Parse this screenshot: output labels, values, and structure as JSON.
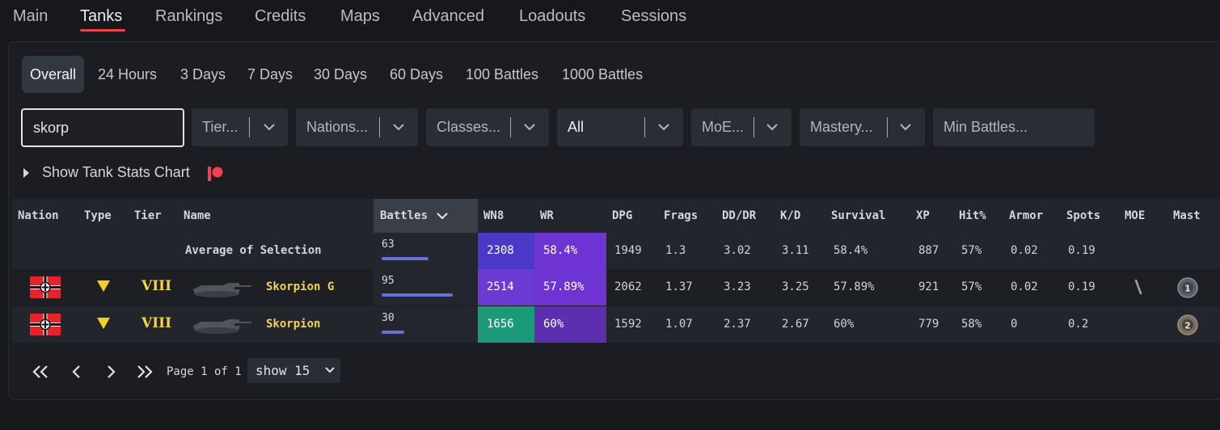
{
  "nav": {
    "tabs": [
      {
        "label": "Main"
      },
      {
        "label": "Tanks",
        "active": true
      },
      {
        "label": "Rankings"
      },
      {
        "label": "Credits"
      },
      {
        "label": "Maps"
      },
      {
        "label": "Advanced"
      },
      {
        "label": "Loadouts"
      },
      {
        "label": "Sessions"
      }
    ],
    "accent_color": "#e8424f"
  },
  "periods": [
    {
      "label": "Overall",
      "active": true
    },
    {
      "label": "24 Hours"
    },
    {
      "label": "3 Days"
    },
    {
      "label": "7 Days"
    },
    {
      "label": "30 Days"
    },
    {
      "label": "60 Days"
    },
    {
      "label": "100 Battles"
    },
    {
      "label": "1000 Battles"
    }
  ],
  "filters": {
    "search_value": "skorp",
    "tier": "Tier...",
    "nations": "Nations...",
    "classes": "Classes...",
    "premium": "All",
    "moe": "MoE...",
    "mastery": "Mastery...",
    "min_battles_placeholder": "Min Battles..."
  },
  "chart_toggle": {
    "label": "Show Tank Stats Chart",
    "icon": "patreon-icon"
  },
  "table": {
    "headers": {
      "nation": "Nation",
      "type": "Type",
      "tier": "Tier",
      "name": "Name",
      "battles": "Battles",
      "wn8": "WN8",
      "wr": "WR",
      "dpg": "DPG",
      "frags": "Frags",
      "dddr": "DD/DR",
      "kd": "K/D",
      "survival": "Survival",
      "xp": "XP",
      "hit": "Hit%",
      "armor": "Armor",
      "spots": "Spots",
      "moe": "MOE",
      "mastery": "Mast"
    },
    "average": {
      "label": "Average of Selection",
      "battles": "63",
      "wn8": "2308",
      "wr": "58.4%",
      "dpg": "1949",
      "frags": "1.3",
      "dddr": "3.02",
      "kd": "3.11",
      "survival": "58.4%",
      "xp": "887",
      "hit": "57%",
      "armor": "0.02",
      "spots": "0.19",
      "wn8_color": "#4a39c9",
      "wr_color": "#6e34d3"
    },
    "rows": [
      {
        "nation": "germany-flag",
        "type": "tank-destroyer-icon",
        "tier": "VIII",
        "name": "Skorpion G",
        "battles": "95",
        "wn8": "2514",
        "wr": "57.89%",
        "dpg": "2062",
        "frags": "1.37",
        "dddr": "3.23",
        "kd": "3.25",
        "survival": "57.89%",
        "xp": "921",
        "hit": "57%",
        "armor": "0.02",
        "spots": "0.19",
        "moe": "moe-1-mark-icon",
        "mastery": "1",
        "wn8_color": "#6a3ad2",
        "wr_color": "#6e34d3"
      },
      {
        "nation": "germany-flag",
        "type": "tank-destroyer-icon",
        "tier": "VIII",
        "name": "Skorpion",
        "battles": "30",
        "wn8": "1656",
        "wr": "60%",
        "dpg": "1592",
        "frags": "1.07",
        "dddr": "2.37",
        "kd": "2.67",
        "survival": "60%",
        "xp": "779",
        "hit": "58%",
        "armor": "0",
        "spots": "0.2",
        "moe": "",
        "mastery": "2",
        "wn8_color": "#1b9a7a",
        "wr_color": "#5b2fb0"
      }
    ],
    "battles_max": 95
  },
  "pager": {
    "page_text": "Page 1 of 1",
    "show_label": "show 15"
  }
}
